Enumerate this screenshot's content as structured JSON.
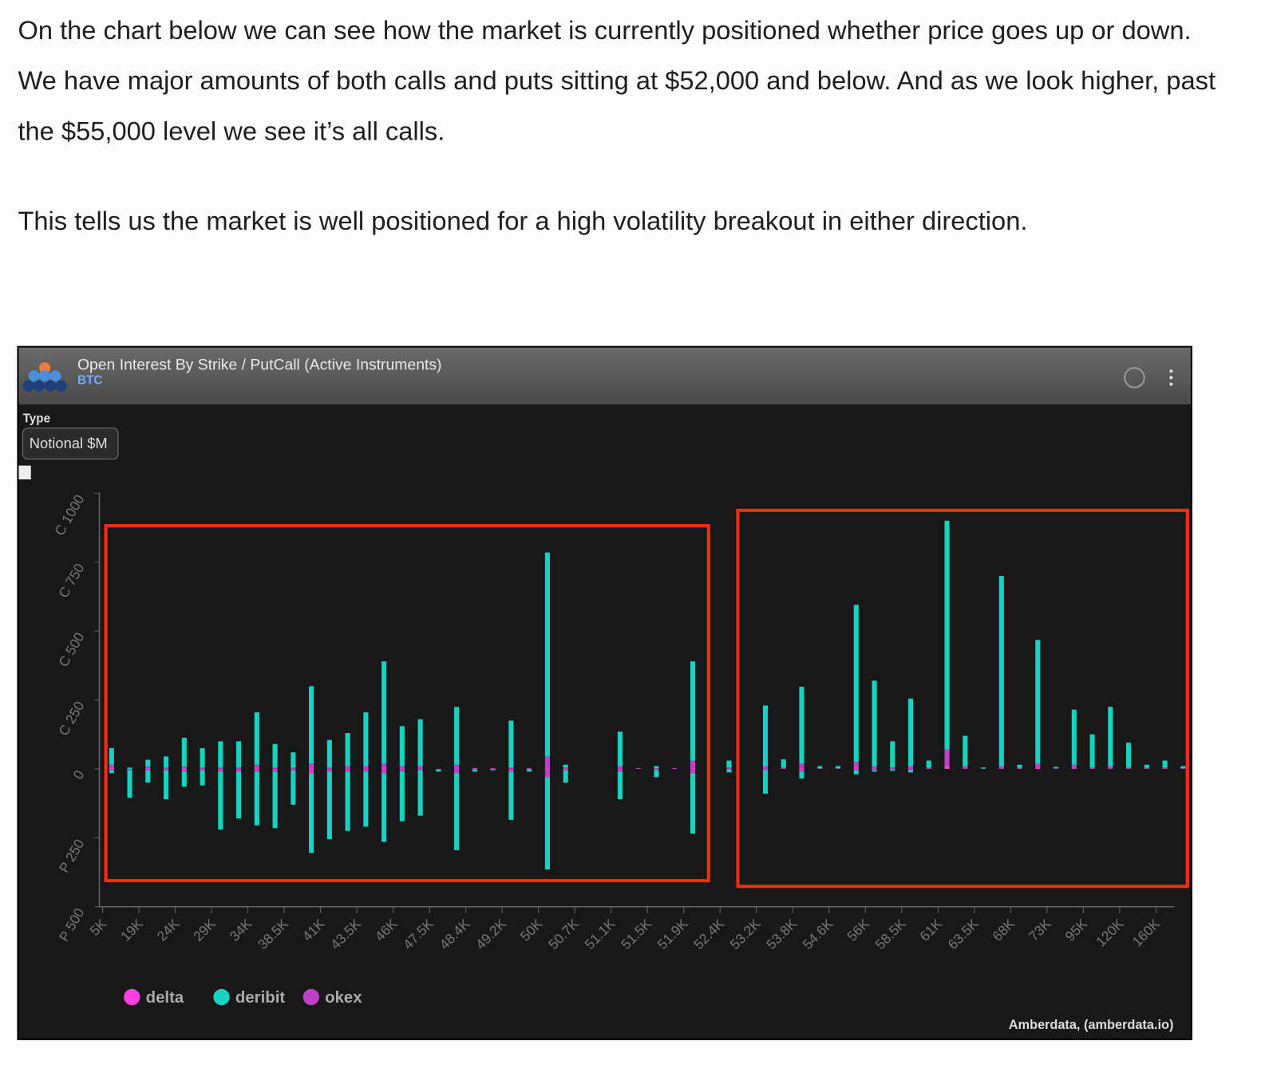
{
  "text": {
    "paragraphs": [
      "On the chart below we can see how the market is currently positioned whether price goes up or down. We have major amounts of both calls and puts sitting at $52,000 and below. And as we look higher, past the $55,000 level we see it’s all calls.",
      "This tells us the market is well positioned for a high volatility breakout in either direction."
    ]
  },
  "chart_data": {
    "type": "bar",
    "stacked": true,
    "title": "Open Interest By Strike / PutCall (Active Instruments)",
    "subtitle": "BTC",
    "control_label": "Type",
    "control_value": "Notional $M",
    "source": "Amberdata, (amberdata.io)",
    "categories": [
      "5K",
      null,
      "19K",
      null,
      "24K",
      null,
      "29K",
      null,
      "34K",
      null,
      "38.5K",
      null,
      "41K",
      null,
      "43.5K",
      null,
      "46K",
      null,
      "47.5K",
      null,
      "48.4K",
      null,
      "49.2K",
      null,
      "50K",
      null,
      "50.7K",
      null,
      "51.1K",
      null,
      "51.5K",
      null,
      "51.9K",
      null,
      "52.4K",
      null,
      "53.2K",
      null,
      "53.8K",
      null,
      "54.6K",
      null,
      "56K",
      null,
      "58.5K",
      null,
      "61K",
      null,
      "63.5K",
      null,
      "68K",
      null,
      "73K",
      null,
      "95K",
      null,
      "120K",
      null,
      "160K",
      null
    ],
    "ylim": [
      -500,
      1000
    ],
    "yticks": [
      {
        "value": -500,
        "label": "P 500"
      },
      {
        "value": -250,
        "label": "P 250"
      },
      0,
      {
        "value": 250,
        "label": "C 250"
      },
      {
        "value": 500,
        "label": "C 500"
      },
      {
        "value": 750,
        "label": "C 750"
      },
      {
        "value": 1000,
        "label": "C 1000"
      }
    ],
    "series": [
      {
        "name": "delta",
        "color": "#ff3fe0",
        "calls": [
          5,
          0,
          3,
          0,
          3,
          0,
          0,
          0,
          5,
          0,
          0,
          5,
          0,
          0,
          0,
          5,
          0,
          0,
          0,
          0,
          0,
          0,
          0,
          0,
          5,
          0,
          0,
          0,
          0,
          0,
          0,
          0,
          5,
          0,
          0,
          0,
          0,
          0,
          3,
          0,
          0,
          5,
          0,
          0,
          0,
          0,
          10,
          0,
          0,
          0,
          0,
          3,
          0,
          0,
          0,
          0,
          0,
          0,
          0,
          0
        ],
        "puts": [
          0,
          0,
          0,
          0,
          0,
          0,
          0,
          0,
          0,
          0,
          0,
          0,
          0,
          0,
          0,
          0,
          0,
          0,
          0,
          0,
          0,
          0,
          0,
          0,
          0,
          0,
          0,
          0,
          0,
          0,
          0,
          0,
          0,
          0,
          0,
          0,
          0,
          0,
          0,
          0,
          0,
          0,
          0,
          0,
          0,
          0,
          0,
          0,
          0,
          0,
          0,
          0,
          0,
          0,
          0,
          0,
          0,
          0,
          0,
          0
        ]
      },
      {
        "name": "deribit",
        "color": "#14d3c0",
        "calls": [
          60,
          5,
          25,
          40,
          105,
          70,
          95,
          95,
          190,
          85,
          55,
          280,
          100,
          120,
          195,
          370,
          145,
          170,
          0,
          210,
          0,
          0,
          170,
          0,
          740,
          10,
          0,
          0,
          125,
          0,
          8,
          0,
          360,
          0,
          25,
          0,
          220,
          30,
          280,
          8,
          8,
          570,
          310,
          95,
          245,
          25,
          830,
          110,
          4,
          690,
          12,
          450,
          5,
          200,
          120,
          215,
          90,
          12,
          25,
          8
        ],
        "puts": [
          -10,
          -100,
          -45,
          -105,
          -55,
          -55,
          -210,
          -170,
          -195,
          -205,
          -125,
          -290,
          -245,
          -215,
          -200,
          -250,
          -180,
          -165,
          -8,
          -280,
          -8,
          -3,
          -175,
          -8,
          -335,
          -45,
          0,
          0,
          -100,
          0,
          -25,
          0,
          -220,
          0,
          -10,
          0,
          -85,
          0,
          -25,
          0,
          0,
          -15,
          -5,
          -5,
          -8,
          0,
          0,
          0,
          0,
          0,
          0,
          0,
          0,
          0,
          0,
          0,
          0,
          0,
          0,
          0
        ]
      },
      {
        "name": "okex",
        "color": "#c040c8",
        "calls": [
          10,
          0,
          5,
          5,
          5,
          5,
          5,
          5,
          10,
          5,
          5,
          15,
          5,
          10,
          10,
          15,
          10,
          10,
          0,
          15,
          3,
          3,
          5,
          3,
          40,
          5,
          0,
          0,
          10,
          3,
          2,
          3,
          25,
          0,
          5,
          0,
          10,
          5,
          15,
          2,
          2,
          20,
          10,
          5,
          10,
          5,
          60,
          10,
          1,
          10,
          3,
          15,
          2,
          15,
          5,
          10,
          5,
          3,
          5,
          2
        ],
        "puts": [
          -5,
          -5,
          -5,
          -5,
          -10,
          -5,
          -10,
          -10,
          -10,
          -10,
          -5,
          -15,
          -10,
          -10,
          -10,
          -15,
          -10,
          -5,
          -2,
          -15,
          -2,
          -2,
          -10,
          -2,
          -30,
          -5,
          0,
          0,
          -10,
          0,
          -5,
          0,
          -15,
          0,
          -3,
          0,
          -5,
          0,
          -10,
          0,
          0,
          -5,
          -5,
          -2,
          -5,
          0,
          0,
          0,
          0,
          0,
          0,
          0,
          0,
          0,
          0,
          0,
          0,
          0,
          0,
          0
        ]
      }
    ]
  }
}
